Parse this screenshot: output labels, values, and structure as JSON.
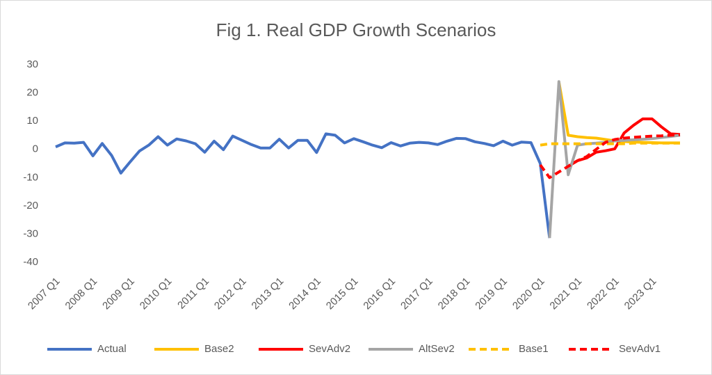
{
  "chart_data": {
    "type": "line",
    "title": "Fig 1. Real GDP Growth Scenarios",
    "categories": [
      "2007 Q1",
      null,
      null,
      null,
      "2008 Q1",
      null,
      null,
      null,
      "2009 Q1",
      null,
      null,
      null,
      "2010 Q1",
      null,
      null,
      null,
      "2011 Q1",
      null,
      null,
      null,
      "2012 Q1",
      null,
      null,
      null,
      "2013 Q1",
      null,
      null,
      null,
      "2014 Q1",
      null,
      null,
      null,
      "2015 Q1",
      null,
      null,
      null,
      "2016 Q1",
      null,
      null,
      null,
      "2017 Q1",
      null,
      null,
      null,
      "2018 Q1",
      null,
      null,
      null,
      "2019 Q1",
      null,
      null,
      null,
      "2020 Q1",
      null,
      null,
      null,
      "2021 Q1",
      null,
      null,
      null,
      "2022 Q1",
      null,
      null,
      null,
      "2023 Q1",
      null,
      null,
      null
    ],
    "series": [
      {
        "name": "Actual",
        "color": "#4472c4",
        "dashed": false,
        "values": [
          0.9,
          2.3,
          2.2,
          2.5,
          -2.3,
          2.1,
          -2.1,
          -8.4,
          -4.4,
          -0.6,
          1.5,
          4.5,
          1.5,
          3.7,
          3.0,
          2.0,
          -1.0,
          2.9,
          -0.1,
          4.7,
          3.2,
          1.7,
          0.5,
          0.5,
          3.6,
          0.5,
          3.2,
          3.2,
          -1.1,
          5.5,
          5.0,
          2.3,
          3.8,
          2.7,
          1.5,
          0.6,
          2.4,
          1.2,
          2.2,
          2.5,
          2.3,
          1.7,
          2.9,
          3.9,
          3.8,
          2.7,
          2.1,
          1.3,
          2.9,
          1.5,
          2.6,
          2.4,
          -5.0,
          -31.4,
          null,
          null,
          null,
          null,
          null,
          null,
          null,
          null,
          null,
          null,
          null,
          null,
          null,
          null
        ]
      },
      {
        "name": "Base2",
        "color": "#ffc000",
        "dashed": false,
        "values": [
          null,
          null,
          null,
          null,
          null,
          null,
          null,
          null,
          null,
          null,
          null,
          null,
          null,
          null,
          null,
          null,
          null,
          null,
          null,
          null,
          null,
          null,
          null,
          null,
          null,
          null,
          null,
          null,
          null,
          null,
          null,
          null,
          null,
          null,
          null,
          null,
          null,
          null,
          null,
          null,
          null,
          null,
          null,
          null,
          null,
          null,
          null,
          null,
          null,
          null,
          null,
          null,
          null,
          null,
          24.0,
          5.0,
          4.5,
          4.2,
          4.0,
          3.5,
          3.0,
          2.8,
          2.6,
          2.5,
          2.4,
          2.3,
          2.3,
          2.3
        ]
      },
      {
        "name": "SevAdv2",
        "color": "#ff0000",
        "dashed": false,
        "values": [
          null,
          null,
          null,
          null,
          null,
          null,
          null,
          null,
          null,
          null,
          null,
          null,
          null,
          null,
          null,
          null,
          null,
          null,
          null,
          null,
          null,
          null,
          null,
          null,
          null,
          null,
          null,
          null,
          null,
          null,
          null,
          null,
          null,
          null,
          null,
          null,
          null,
          null,
          null,
          null,
          null,
          null,
          null,
          null,
          null,
          null,
          null,
          null,
          null,
          null,
          null,
          null,
          null,
          null,
          null,
          -6.0,
          -4.0,
          -3.0,
          -1.0,
          -0.5,
          0.2,
          5.8,
          8.5,
          10.8,
          10.8,
          8.0,
          5.5,
          5.3
        ]
      },
      {
        "name": "AltSev2",
        "color": "#a5a5a5",
        "dashed": false,
        "values": [
          null,
          null,
          null,
          null,
          null,
          null,
          null,
          null,
          null,
          null,
          null,
          null,
          null,
          null,
          null,
          null,
          null,
          null,
          null,
          null,
          null,
          null,
          null,
          null,
          null,
          null,
          null,
          null,
          null,
          null,
          null,
          null,
          null,
          null,
          null,
          null,
          null,
          null,
          null,
          null,
          null,
          null,
          null,
          null,
          null,
          null,
          null,
          null,
          null,
          null,
          null,
          null,
          null,
          -31.4,
          24.0,
          -9.0,
          1.5,
          2.0,
          2.2,
          2.5,
          3.0,
          3.2,
          3.4,
          3.6,
          3.8,
          4.2,
          4.6,
          5.0
        ]
      },
      {
        "name": "Base1",
        "color": "#ffc000",
        "dashed": true,
        "values": [
          null,
          null,
          null,
          null,
          null,
          null,
          null,
          null,
          null,
          null,
          null,
          null,
          null,
          null,
          null,
          null,
          null,
          null,
          null,
          null,
          null,
          null,
          null,
          null,
          null,
          null,
          null,
          null,
          null,
          null,
          null,
          null,
          null,
          null,
          null,
          null,
          null,
          null,
          null,
          null,
          null,
          null,
          null,
          null,
          null,
          null,
          null,
          null,
          null,
          null,
          null,
          null,
          1.5,
          2.0,
          2.0,
          2.0,
          2.0,
          2.0,
          2.0,
          2.0,
          2.0,
          2.0,
          2.2,
          2.2,
          2.2,
          2.2,
          2.2,
          2.2
        ]
      },
      {
        "name": "SevAdv1",
        "color": "#ff0000",
        "dashed": true,
        "values": [
          null,
          null,
          null,
          null,
          null,
          null,
          null,
          null,
          null,
          null,
          null,
          null,
          null,
          null,
          null,
          null,
          null,
          null,
          null,
          null,
          null,
          null,
          null,
          null,
          null,
          null,
          null,
          null,
          null,
          null,
          null,
          null,
          null,
          null,
          null,
          null,
          null,
          null,
          null,
          null,
          null,
          null,
          null,
          null,
          null,
          null,
          null,
          null,
          null,
          null,
          null,
          null,
          -5.5,
          -10.0,
          -8.0,
          -6.0,
          -4.0,
          -2.5,
          0.0,
          2.5,
          3.5,
          4.0,
          4.3,
          4.5,
          4.7,
          4.8,
          5.0,
          5.2
        ]
      }
    ],
    "ylim": [
      -40,
      30
    ],
    "yticks": [
      -40,
      -30,
      -20,
      -10,
      0,
      10,
      20,
      30
    ],
    "grid": false,
    "legend": "bottom"
  }
}
